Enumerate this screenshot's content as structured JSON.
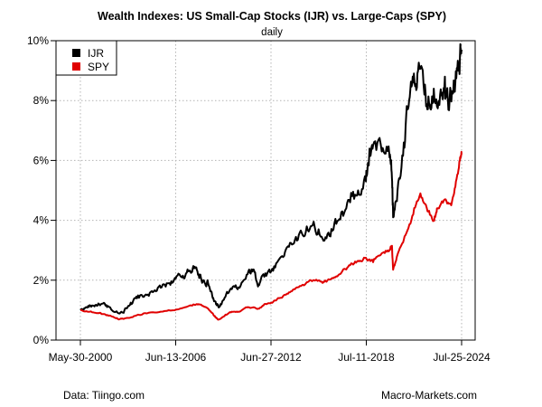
{
  "chart_data": {
    "type": "line",
    "title": "Wealth Indexes: US Small-Cap Stocks (IJR) vs. Large-Caps (SPY)",
    "subtitle": "daily",
    "xlabel": "",
    "ylabel": "",
    "x_tick_labels": [
      "May-30-2000",
      "Jun-13-2006",
      "Jun-27-2012",
      "Jul-11-2018",
      "Jul-25-2024"
    ],
    "y_tick_labels": [
      "0%",
      "2%",
      "4%",
      "6%",
      "8%",
      "10%"
    ],
    "ylim": [
      0,
      10
    ],
    "xlim": [
      2000.41,
      2024.56
    ],
    "grid": true,
    "legend_position": "top-left",
    "series": [
      {
        "name": "IJR",
        "color": "#000000",
        "x": [
          2000.41,
          2000.8,
          2001.2,
          2001.6,
          2002.0,
          2002.4,
          2002.8,
          2003.2,
          2003.6,
          2004.0,
          2004.5,
          2005.0,
          2005.5,
          2006.0,
          2006.45,
          2006.9,
          2007.3,
          2007.6,
          2007.9,
          2008.2,
          2008.5,
          2008.8,
          2009.0,
          2009.2,
          2009.6,
          2010.0,
          2010.5,
          2011.0,
          2011.4,
          2011.7,
          2012.0,
          2012.5,
          2013.0,
          2013.5,
          2014.0,
          2014.5,
          2015.0,
          2015.5,
          2016.0,
          2016.5,
          2017.0,
          2017.5,
          2018.0,
          2018.5,
          2018.7,
          2018.95,
          2019.5,
          2020.0,
          2020.15,
          2020.22,
          2020.5,
          2020.9,
          2021.2,
          2021.5,
          2021.8,
          2022.2,
          2022.5,
          2022.8,
          2023.2,
          2023.5,
          2023.8,
          2024.1,
          2024.35,
          2024.56
        ],
        "values": [
          1.0,
          1.1,
          1.15,
          1.2,
          1.15,
          1.0,
          0.9,
          1.0,
          1.25,
          1.4,
          1.5,
          1.6,
          1.75,
          1.9,
          2.05,
          2.15,
          2.3,
          2.4,
          2.2,
          2.0,
          1.9,
          1.4,
          1.2,
          1.1,
          1.45,
          1.7,
          1.75,
          2.2,
          2.35,
          1.85,
          2.2,
          2.3,
          2.7,
          3.1,
          3.35,
          3.5,
          3.8,
          3.7,
          3.4,
          3.9,
          4.3,
          4.6,
          5.0,
          5.3,
          6.1,
          6.5,
          6.3,
          6.1,
          5.4,
          4.1,
          5.0,
          6.6,
          7.8,
          8.6,
          9.0,
          8.2,
          7.9,
          8.4,
          8.2,
          8.8,
          8.0,
          8.6,
          9.0,
          9.7
        ]
      },
      {
        "name": "SPY",
        "color": "#e00000",
        "x": [
          2000.41,
          2001.0,
          2001.6,
          2002.0,
          2002.5,
          2002.8,
          2003.2,
          2003.8,
          2004.5,
          2005.5,
          2006.5,
          2007.5,
          2007.9,
          2008.5,
          2008.9,
          2009.15,
          2009.6,
          2010.0,
          2010.5,
          2011.0,
          2011.7,
          2012.0,
          2012.5,
          2013.0,
          2013.5,
          2014.0,
          2014.5,
          2015.0,
          2015.7,
          2016.0,
          2016.5,
          2017.0,
          2017.5,
          2018.0,
          2018.5,
          2018.95,
          2019.5,
          2020.0,
          2020.15,
          2020.22,
          2020.6,
          2021.0,
          2021.5,
          2021.95,
          2022.4,
          2022.8,
          2023.0,
          2023.5,
          2023.9,
          2024.2,
          2024.45,
          2024.56
        ],
        "values": [
          1.0,
          0.95,
          0.9,
          0.85,
          0.78,
          0.7,
          0.72,
          0.8,
          0.9,
          0.95,
          1.02,
          1.15,
          1.2,
          1.05,
          0.8,
          0.68,
          0.85,
          0.95,
          0.95,
          1.1,
          1.05,
          1.15,
          1.25,
          1.4,
          1.55,
          1.7,
          1.85,
          2.0,
          1.95,
          1.95,
          2.1,
          2.3,
          2.5,
          2.65,
          2.75,
          2.6,
          2.9,
          3.0,
          3.15,
          2.35,
          3.0,
          3.5,
          4.2,
          4.9,
          4.3,
          4.0,
          4.4,
          4.7,
          4.5,
          5.3,
          6.0,
          6.2
        ]
      }
    ]
  },
  "footer": {
    "source": "Data: Tiingo.com",
    "brand": "Macro-Markets.com"
  }
}
